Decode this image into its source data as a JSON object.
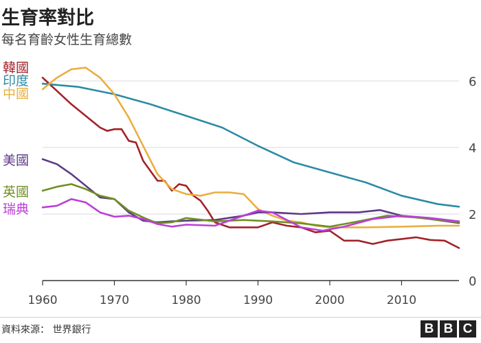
{
  "chart_data": {
    "type": "line",
    "title": "生育率對比",
    "subtitle": "每名育齡女性生育總數",
    "x_ticks": [
      1960,
      1970,
      1980,
      1990,
      2000,
      2010
    ],
    "y_ticks": [
      0,
      2,
      4,
      6
    ],
    "xlim": [
      1960,
      2018
    ],
    "ylim": [
      0,
      6.6
    ],
    "grid": "horizontal",
    "legend_position": "left",
    "series": [
      {
        "name": "韓國",
        "color": "#a32128",
        "label_y": 6.4,
        "x": [
          1960,
          1962,
          1964,
          1966,
          1968,
          1969,
          1970,
          1971,
          1972,
          1973,
          1974,
          1976,
          1977,
          1978,
          1979,
          1980,
          1981,
          1982,
          1983,
          1984,
          1986,
          1988,
          1990,
          1992,
          1994,
          1996,
          1998,
          2000,
          2002,
          2004,
          2006,
          2008,
          2010,
          2012,
          2014,
          2016,
          2018
        ],
        "y": [
          6.1,
          5.7,
          5.3,
          4.95,
          4.6,
          4.5,
          4.55,
          4.55,
          4.2,
          4.15,
          3.6,
          3.0,
          3.0,
          2.7,
          2.9,
          2.85,
          2.55,
          2.4,
          2.1,
          1.75,
          1.6,
          1.6,
          1.6,
          1.75,
          1.65,
          1.6,
          1.45,
          1.5,
          1.2,
          1.2,
          1.1,
          1.2,
          1.25,
          1.3,
          1.22,
          1.2,
          0.98
        ]
      },
      {
        "name": "印度",
        "color": "#2b8ba3",
        "label_y": 6.0,
        "x": [
          1960,
          1965,
          1970,
          1975,
          1980,
          1985,
          1990,
          1995,
          2000,
          2005,
          2010,
          2015,
          2018
        ],
        "y": [
          5.92,
          5.82,
          5.6,
          5.3,
          4.95,
          4.6,
          4.05,
          3.55,
          3.25,
          2.95,
          2.55,
          2.3,
          2.22
        ]
      },
      {
        "name": "中國",
        "color": "#eaae3f",
        "label_y": 5.6,
        "x": [
          1960,
          1962,
          1964,
          1966,
          1968,
          1970,
          1972,
          1974,
          1976,
          1978,
          1980,
          1982,
          1984,
          1986,
          1988,
          1990,
          1992,
          1994,
          1996,
          1998,
          2000,
          2005,
          2010,
          2015,
          2018
        ],
        "y": [
          5.75,
          6.1,
          6.35,
          6.4,
          6.1,
          5.6,
          4.9,
          4.05,
          3.2,
          2.75,
          2.6,
          2.55,
          2.65,
          2.65,
          2.6,
          2.15,
          1.95,
          1.8,
          1.75,
          1.65,
          1.6,
          1.6,
          1.62,
          1.65,
          1.65
        ]
      },
      {
        "name": "美國",
        "color": "#5c3a86",
        "label_y": 3.6,
        "x": [
          1960,
          1962,
          1964,
          1966,
          1968,
          1970,
          1972,
          1974,
          1976,
          1978,
          1980,
          1984,
          1988,
          1990,
          1992,
          1996,
          2000,
          2004,
          2007,
          2010,
          2014,
          2018
        ],
        "y": [
          3.65,
          3.5,
          3.2,
          2.85,
          2.5,
          2.45,
          2.05,
          1.8,
          1.75,
          1.78,
          1.8,
          1.82,
          1.95,
          2.05,
          2.05,
          2.0,
          2.05,
          2.05,
          2.12,
          1.95,
          1.85,
          1.73
        ]
      },
      {
        "name": "英國",
        "color": "#6f8f24",
        "label_y": 2.65,
        "x": [
          1960,
          1962,
          1964,
          1966,
          1968,
          1970,
          1972,
          1974,
          1976,
          1978,
          1980,
          1984,
          1988,
          1992,
          1996,
          2000,
          2004,
          2008,
          2012,
          2016,
          2018
        ],
        "y": [
          2.7,
          2.82,
          2.9,
          2.75,
          2.55,
          2.45,
          2.1,
          1.9,
          1.72,
          1.75,
          1.88,
          1.78,
          1.82,
          1.78,
          1.72,
          1.62,
          1.78,
          1.95,
          1.9,
          1.8,
          1.75
        ]
      },
      {
        "name": "瑞典",
        "color": "#bb3fd9",
        "label_y": 2.15,
        "x": [
          1960,
          1962,
          1964,
          1966,
          1968,
          1970,
          1972,
          1974,
          1976,
          1978,
          1980,
          1984,
          1988,
          1990,
          1992,
          1996,
          1999,
          2002,
          2006,
          2010,
          2014,
          2018
        ],
        "y": [
          2.2,
          2.25,
          2.45,
          2.35,
          2.05,
          1.92,
          1.95,
          1.85,
          1.7,
          1.62,
          1.68,
          1.65,
          1.95,
          2.1,
          2.05,
          1.6,
          1.5,
          1.62,
          1.85,
          1.95,
          1.88,
          1.78
        ]
      }
    ]
  },
  "footer": {
    "source": "資料來源： 世界銀行",
    "logo": [
      "B",
      "B",
      "C"
    ]
  }
}
